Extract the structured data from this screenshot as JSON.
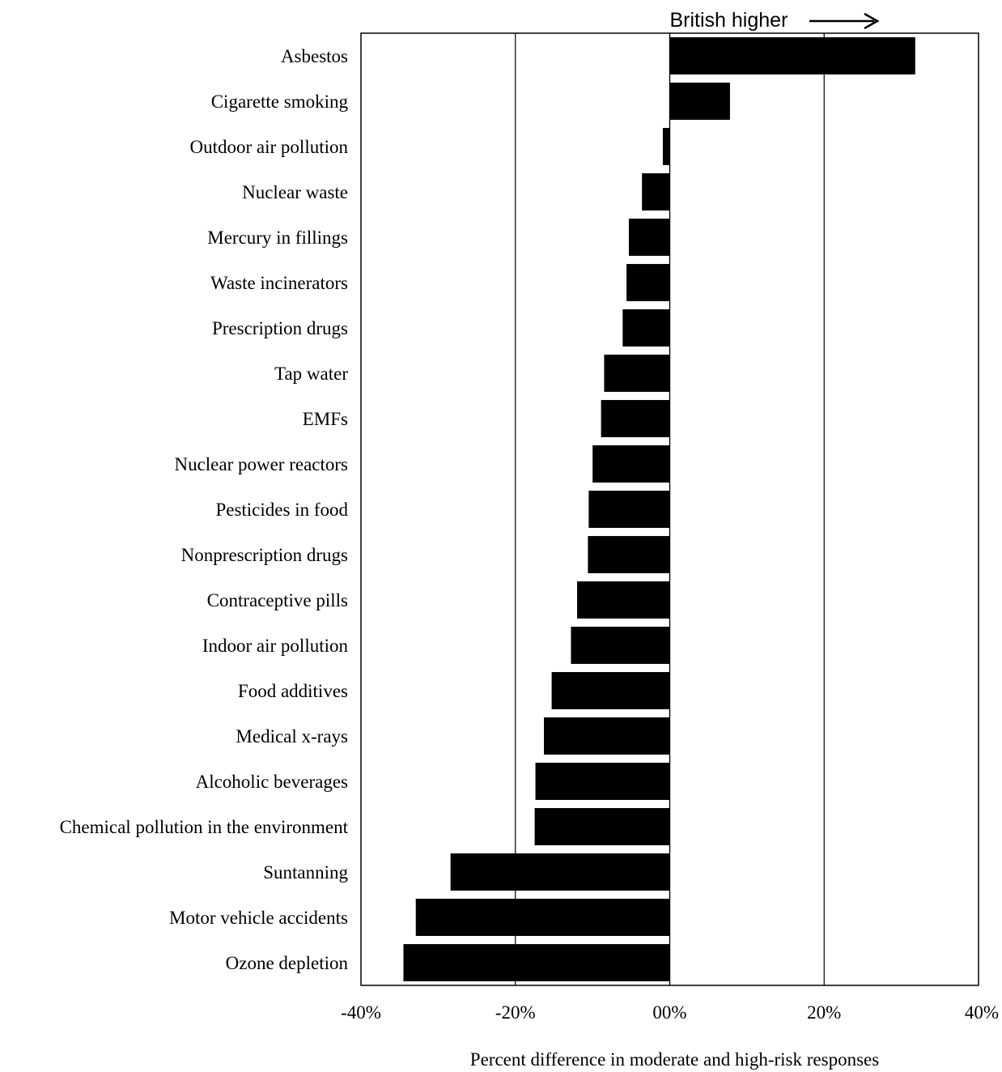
{
  "chart_data": {
    "type": "bar",
    "orientation": "horizontal",
    "categories": [
      "Asbestos",
      "Cigarette smoking",
      "Outdoor air pollution",
      "Nuclear waste",
      "Mercury in fillings",
      "Waste incinerators",
      "Prescription drugs",
      "Tap water",
      "EMFs",
      "Nuclear power reactors",
      "Pesticides in food",
      "Nonprescription drugs",
      "Contraceptive pills",
      "Indoor air pollution",
      "Food additives",
      "Medical x-rays",
      "Alcoholic beverages",
      "Chemical pollution in the environment",
      "Suntanning",
      "Motor vehicle accidents",
      "Ozone depletion"
    ],
    "values": [
      31.8,
      7.8,
      -0.9,
      -3.6,
      -5.3,
      -5.6,
      -6.1,
      -8.5,
      -8.9,
      -10.0,
      -10.5,
      -10.6,
      -12.0,
      -12.8,
      -15.3,
      -16.3,
      -17.4,
      -17.5,
      -28.4,
      -32.9,
      -34.5
    ],
    "xlabel": "Percent difference in moderate and high-risk responses",
    "xlim": [
      -40,
      40
    ],
    "xticks": [
      {
        "value": -40,
        "label": "-40%"
      },
      {
        "value": -20,
        "label": "-20%"
      },
      {
        "value": 0,
        "label": "00%"
      },
      {
        "value": 20,
        "label": "20%"
      },
      {
        "value": 40,
        "label": "40%"
      }
    ],
    "annotation": "British higher",
    "bar_color": "#000000"
  }
}
